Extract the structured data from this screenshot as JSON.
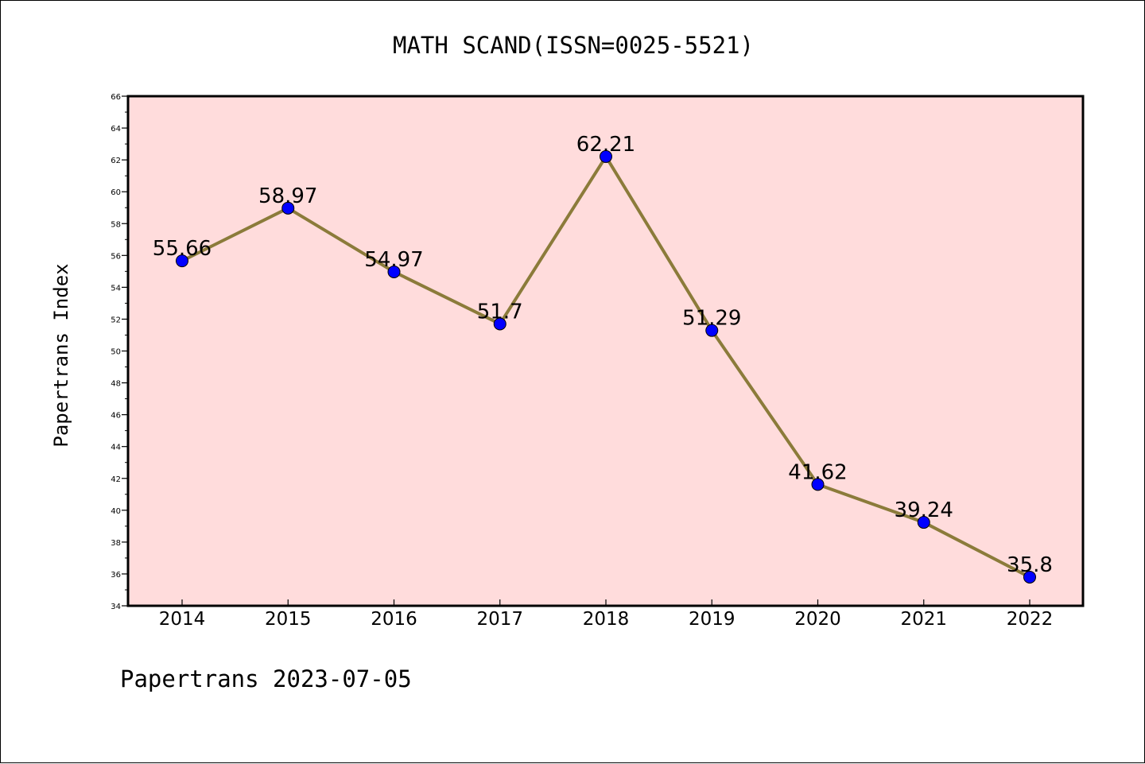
{
  "chart_data": {
    "type": "line",
    "title": "MATH SCAND(ISSN=0025-5521)",
    "ylabel": "Papertrans Index",
    "xlabel": "",
    "footer": "Papertrans 2023-07-05",
    "categories": [
      "2014",
      "2015",
      "2016",
      "2017",
      "2018",
      "2019",
      "2020",
      "2021",
      "2022"
    ],
    "values": [
      55.66,
      58.97,
      54.97,
      51.7,
      62.21,
      51.29,
      41.62,
      39.24,
      35.8
    ],
    "data_labels": [
      "55.66",
      "58.97",
      "54.97",
      "51.7",
      "62.21",
      "51.29",
      "41.62",
      "39.24",
      "35.8"
    ],
    "ylim": [
      34,
      66
    ],
    "yticks": [
      "34",
      "36",
      "38",
      "40",
      "42",
      "44",
      "46",
      "48",
      "50",
      "52",
      "54",
      "56",
      "58",
      "60",
      "62",
      "64",
      "66"
    ],
    "grid": false,
    "colors": {
      "plot_background": "#ffdcdc",
      "line": "#8b7b3a",
      "marker": "#0000ff",
      "axes": "#000000"
    }
  }
}
